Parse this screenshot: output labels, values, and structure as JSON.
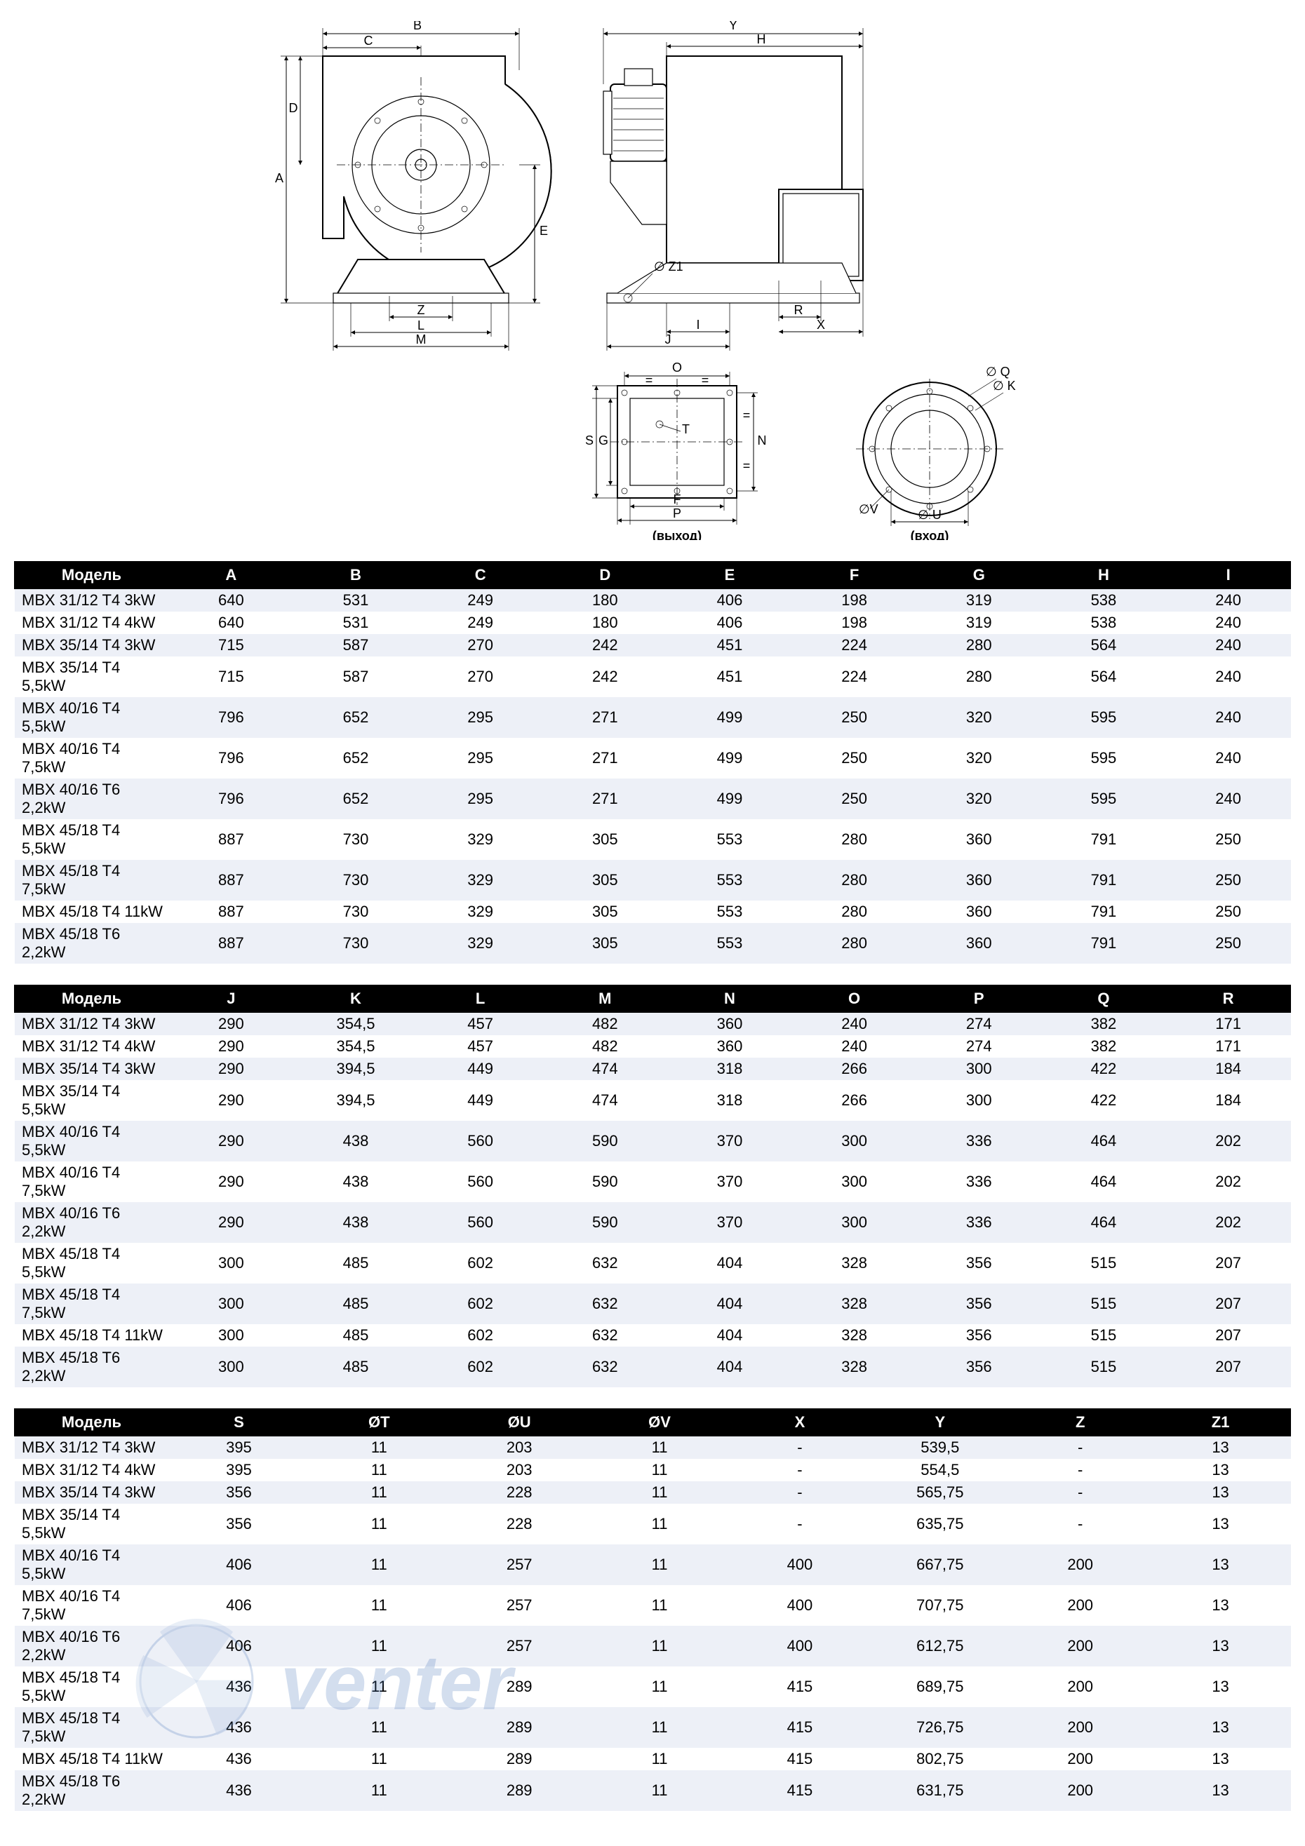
{
  "diagram": {
    "labels": {
      "exit": "(выход)",
      "entry": "(вход)"
    },
    "dims_left": [
      "A",
      "B",
      "C",
      "D",
      "E",
      "M",
      "L",
      "Z"
    ],
    "dims_right": [
      "Y",
      "H",
      "I",
      "J",
      "R",
      "X",
      "Z1"
    ],
    "dims_outlet": [
      "O",
      "F",
      "P",
      "G",
      "S",
      "T",
      "N"
    ],
    "dims_inlet": [
      "Q",
      "K",
      "U",
      "V"
    ]
  },
  "table1": {
    "cols": [
      "Модель",
      "A",
      "B",
      "C",
      "D",
      "E",
      "F",
      "G",
      "H",
      "I"
    ],
    "rows": [
      [
        "MBX 31/12 T4 3kW",
        "640",
        "531",
        "249",
        "180",
        "406",
        "198",
        "319",
        "538",
        "240"
      ],
      [
        "MBX 31/12 T4 4kW",
        "640",
        "531",
        "249",
        "180",
        "406",
        "198",
        "319",
        "538",
        "240"
      ],
      [
        "MBX 35/14 T4 3kW",
        "715",
        "587",
        "270",
        "242",
        "451",
        "224",
        "280",
        "564",
        "240"
      ],
      [
        "MBX 35/14 T4 5,5kW",
        "715",
        "587",
        "270",
        "242",
        "451",
        "224",
        "280",
        "564",
        "240"
      ],
      [
        "MBX 40/16 T4 5,5kW",
        "796",
        "652",
        "295",
        "271",
        "499",
        "250",
        "320",
        "595",
        "240"
      ],
      [
        "MBX 40/16 T4 7,5kW",
        "796",
        "652",
        "295",
        "271",
        "499",
        "250",
        "320",
        "595",
        "240"
      ],
      [
        "MBX 40/16 T6 2,2kW",
        "796",
        "652",
        "295",
        "271",
        "499",
        "250",
        "320",
        "595",
        "240"
      ],
      [
        "MBX 45/18 T4 5,5kW",
        "887",
        "730",
        "329",
        "305",
        "553",
        "280",
        "360",
        "791",
        "250"
      ],
      [
        "MBX 45/18 T4 7,5kW",
        "887",
        "730",
        "329",
        "305",
        "553",
        "280",
        "360",
        "791",
        "250"
      ],
      [
        "MBX 45/18 T4 11kW",
        "887",
        "730",
        "329",
        "305",
        "553",
        "280",
        "360",
        "791",
        "250"
      ],
      [
        "MBX 45/18 T6 2,2kW",
        "887",
        "730",
        "329",
        "305",
        "553",
        "280",
        "360",
        "791",
        "250"
      ]
    ]
  },
  "table2": {
    "cols": [
      "Модель",
      "J",
      "K",
      "L",
      "M",
      "N",
      "O",
      "P",
      "Q",
      "R"
    ],
    "rows": [
      [
        "MBX 31/12 T4 3kW",
        "290",
        "354,5",
        "457",
        "482",
        "360",
        "240",
        "274",
        "382",
        "171"
      ],
      [
        "MBX 31/12 T4 4kW",
        "290",
        "354,5",
        "457",
        "482",
        "360",
        "240",
        "274",
        "382",
        "171"
      ],
      [
        "MBX 35/14 T4 3kW",
        "290",
        "394,5",
        "449",
        "474",
        "318",
        "266",
        "300",
        "422",
        "184"
      ],
      [
        "MBX 35/14 T4 5,5kW",
        "290",
        "394,5",
        "449",
        "474",
        "318",
        "266",
        "300",
        "422",
        "184"
      ],
      [
        "MBX 40/16 T4 5,5kW",
        "290",
        "438",
        "560",
        "590",
        "370",
        "300",
        "336",
        "464",
        "202"
      ],
      [
        "MBX 40/16 T4 7,5kW",
        "290",
        "438",
        "560",
        "590",
        "370",
        "300",
        "336",
        "464",
        "202"
      ],
      [
        "MBX 40/16 T6 2,2kW",
        "290",
        "438",
        "560",
        "590",
        "370",
        "300",
        "336",
        "464",
        "202"
      ],
      [
        "MBX 45/18 T4 5,5kW",
        "300",
        "485",
        "602",
        "632",
        "404",
        "328",
        "356",
        "515",
        "207"
      ],
      [
        "MBX 45/18 T4 7,5kW",
        "300",
        "485",
        "602",
        "632",
        "404",
        "328",
        "356",
        "515",
        "207"
      ],
      [
        "MBX 45/18 T4 11kW",
        "300",
        "485",
        "602",
        "632",
        "404",
        "328",
        "356",
        "515",
        "207"
      ],
      [
        "MBX 45/18 T6 2,2kW",
        "300",
        "485",
        "602",
        "632",
        "404",
        "328",
        "356",
        "515",
        "207"
      ]
    ]
  },
  "table3": {
    "cols": [
      "Модель",
      "S",
      "ØT",
      "ØU",
      "ØV",
      "X",
      "Y",
      "Z",
      "Z1"
    ],
    "rows": [
      [
        "MBX 31/12 T4 3kW",
        "395",
        "11",
        "203",
        "11",
        "-",
        "539,5",
        "-",
        "13"
      ],
      [
        "MBX 31/12 T4 4kW",
        "395",
        "11",
        "203",
        "11",
        "-",
        "554,5",
        "-",
        "13"
      ],
      [
        "MBX 35/14 T4 3kW",
        "356",
        "11",
        "228",
        "11",
        "-",
        "565,75",
        "-",
        "13"
      ],
      [
        "MBX 35/14 T4 5,5kW",
        "356",
        "11",
        "228",
        "11",
        "-",
        "635,75",
        "-",
        "13"
      ],
      [
        "MBX 40/16 T4 5,5kW",
        "406",
        "11",
        "257",
        "11",
        "400",
        "667,75",
        "200",
        "13"
      ],
      [
        "MBX 40/16 T4 7,5kW",
        "406",
        "11",
        "257",
        "11",
        "400",
        "707,75",
        "200",
        "13"
      ],
      [
        "MBX 40/16 T6 2,2kW",
        "406",
        "11",
        "257",
        "11",
        "400",
        "612,75",
        "200",
        "13"
      ],
      [
        "MBX 45/18 T4 5,5kW",
        "436",
        "11",
        "289",
        "11",
        "415",
        "689,75",
        "200",
        "13"
      ],
      [
        "MBX 45/18 T4 7,5kW",
        "436",
        "11",
        "289",
        "11",
        "415",
        "726,75",
        "200",
        "13"
      ],
      [
        "MBX 45/18 T4 11kW",
        "436",
        "11",
        "289",
        "11",
        "415",
        "802,75",
        "200",
        "13"
      ],
      [
        "MBX 45/18 T6 2,2kW",
        "436",
        "11",
        "289",
        "11",
        "415",
        "631,75",
        "200",
        "13"
      ]
    ]
  },
  "watermark": {
    "text": "venter"
  }
}
